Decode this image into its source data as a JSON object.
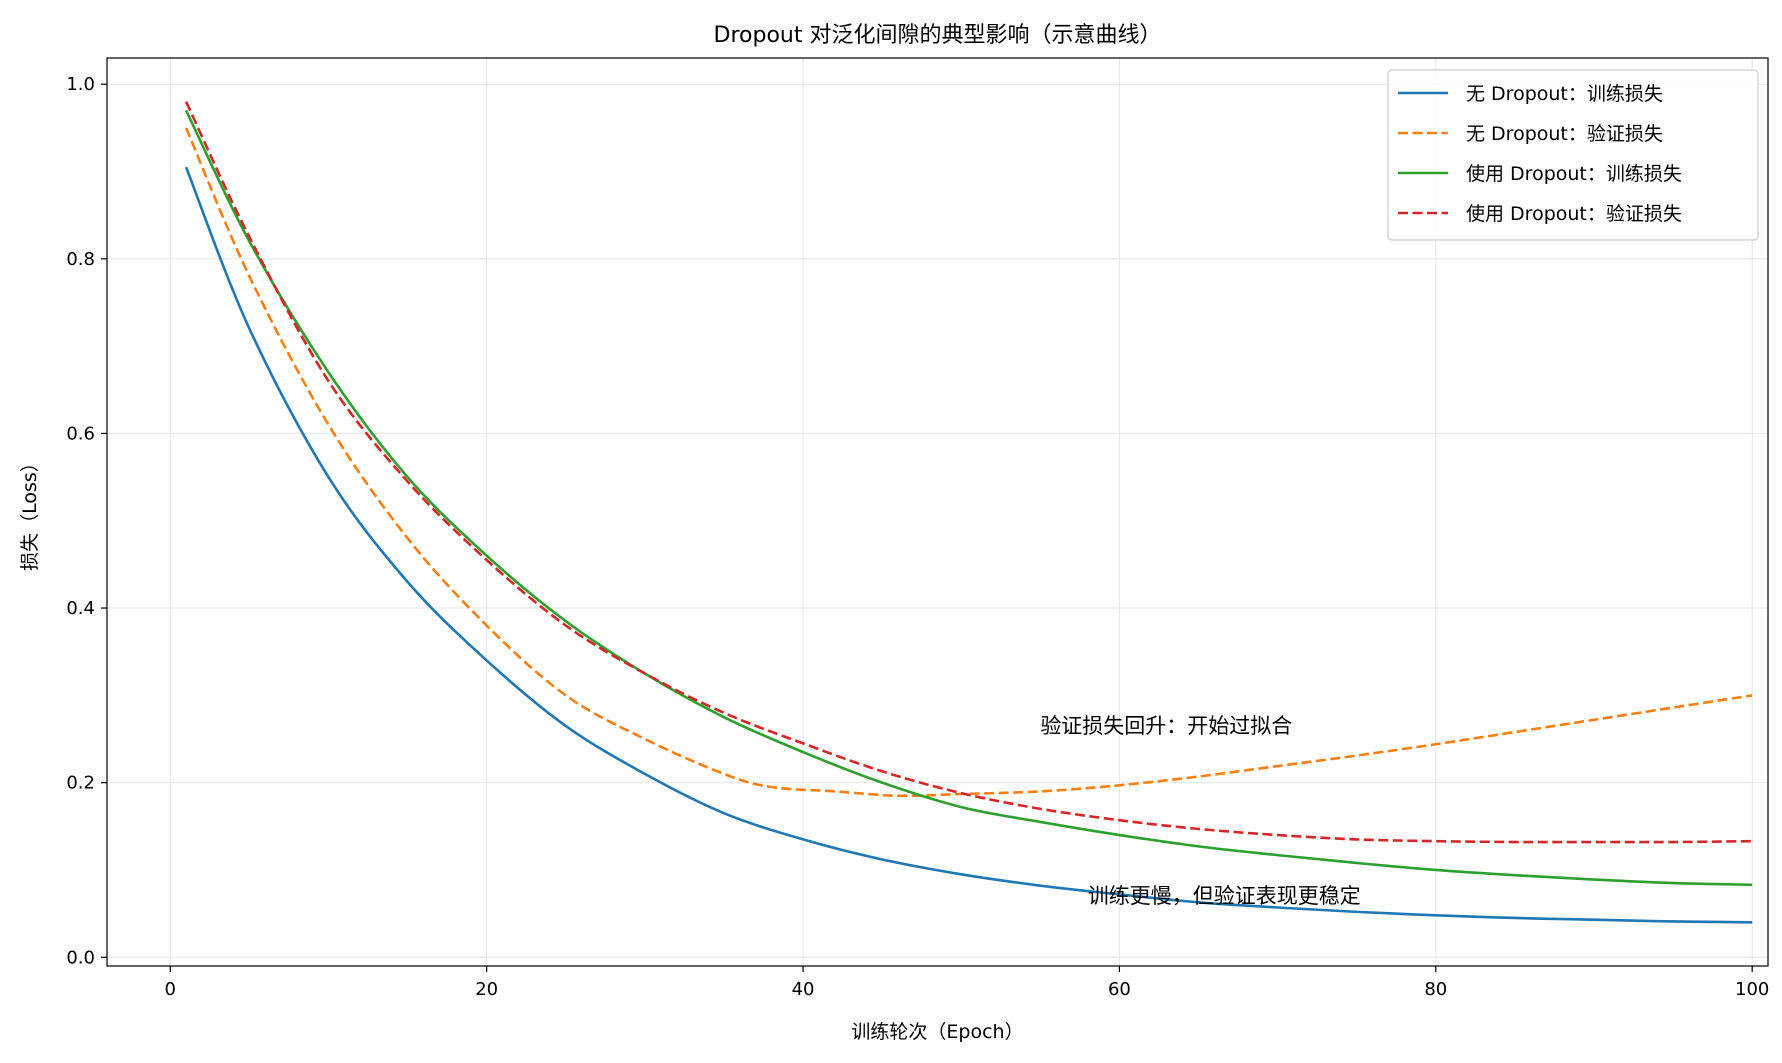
{
  "chart_data": {
    "type": "line",
    "title": "Dropout 对泛化间隙的典型影响（示意曲线）",
    "xlabel": "训练轮次（Epoch）",
    "ylabel": "损失（Loss）",
    "xlim": [
      -4,
      101
    ],
    "ylim": [
      -0.01,
      1.03
    ],
    "xticks": [
      0,
      20,
      40,
      60,
      80,
      100
    ],
    "yticks": [
      0.0,
      0.2,
      0.4,
      0.6,
      0.8,
      1.0
    ],
    "xtick_labels": [
      "0",
      "20",
      "40",
      "60",
      "80",
      "100"
    ],
    "ytick_labels": [
      "0.0",
      "0.2",
      "0.4",
      "0.6",
      "0.8",
      "1.0"
    ],
    "grid": true,
    "legend_position": "top-right",
    "series": [
      {
        "name": "无 Dropout：训练损失",
        "color": "#1f77b4",
        "dash": "solid",
        "x": [
          1,
          5,
          10,
          15,
          20,
          25,
          30,
          35,
          40,
          45,
          50,
          55,
          60,
          65,
          70,
          75,
          80,
          85,
          90,
          95,
          100
        ],
        "y": [
          0.905,
          0.72,
          0.55,
          0.43,
          0.34,
          0.265,
          0.21,
          0.165,
          0.135,
          0.112,
          0.095,
          0.082,
          0.072,
          0.063,
          0.057,
          0.052,
          0.048,
          0.045,
          0.043,
          0.041,
          0.04
        ]
      },
      {
        "name": "无 Dropout：验证损失",
        "color": "#ff7f0e",
        "dash": "dashed",
        "x": [
          1,
          5,
          10,
          15,
          20,
          25,
          30,
          35,
          38,
          42,
          46,
          50,
          55,
          60,
          65,
          70,
          75,
          80,
          85,
          90,
          95,
          100
        ],
        "y": [
          0.95,
          0.78,
          0.61,
          0.48,
          0.38,
          0.3,
          0.25,
          0.21,
          0.195,
          0.19,
          0.185,
          0.187,
          0.19,
          0.197,
          0.207,
          0.219,
          0.231,
          0.244,
          0.258,
          0.272,
          0.286,
          0.3
        ]
      },
      {
        "name": "使用 Dropout：训练损失",
        "color": "#2ca02c",
        "dash": "solid",
        "x": [
          1,
          5,
          10,
          15,
          20,
          25,
          30,
          35,
          40,
          45,
          50,
          55,
          60,
          65,
          70,
          75,
          80,
          85,
          90,
          95,
          100
        ],
        "y": [
          0.97,
          0.82,
          0.67,
          0.55,
          0.46,
          0.385,
          0.325,
          0.275,
          0.235,
          0.2,
          0.172,
          0.155,
          0.14,
          0.127,
          0.117,
          0.108,
          0.1,
          0.094,
          0.089,
          0.085,
          0.083
        ]
      },
      {
        "name": "使用 Dropout：验证损失",
        "color": "#d62728",
        "dash": "dashed",
        "x": [
          1,
          5,
          10,
          15,
          20,
          25,
          30,
          35,
          40,
          45,
          50,
          55,
          60,
          65,
          70,
          75,
          80,
          85,
          90,
          95,
          100
        ],
        "y": [
          0.98,
          0.825,
          0.66,
          0.545,
          0.455,
          0.38,
          0.325,
          0.28,
          0.245,
          0.213,
          0.188,
          0.17,
          0.157,
          0.147,
          0.14,
          0.135,
          0.133,
          0.132,
          0.132,
          0.132,
          0.133
        ]
      }
    ],
    "annotations": [
      {
        "text": "验证损失回升：开始过拟合",
        "x": 55,
        "y": 0.265
      },
      {
        "text": "训练更慢，但验证表现更稳定",
        "x": 58,
        "y": 0.07
      }
    ]
  }
}
